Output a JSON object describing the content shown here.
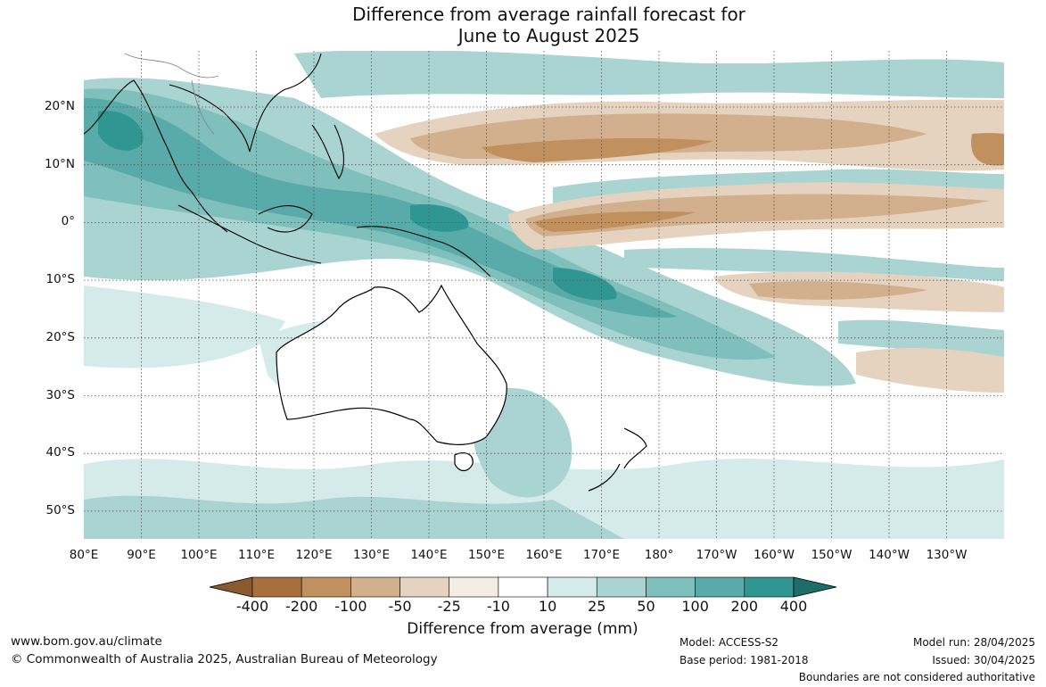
{
  "title": {
    "line1": "Difference from average rainfall forecast for",
    "line2": "June to August 2025"
  },
  "latitude_labels": [
    "20°N",
    "10°N",
    "0°",
    "10°S",
    "20°S",
    "30°S",
    "40°S",
    "50°S"
  ],
  "longitude_labels": [
    "80°E",
    "90°E",
    "100°E",
    "110°E",
    "120°E",
    "130°E",
    "140°E",
    "150°E",
    "160°E",
    "170°E",
    "180°",
    "170°W",
    "160°W",
    "150°W",
    "140°W",
    "130°W"
  ],
  "colorbar": {
    "labels": [
      "-400",
      "-200",
      "-100",
      "-50",
      "-25",
      "-10",
      "10",
      "25",
      "50",
      "100",
      "200",
      "400"
    ],
    "colors": [
      "#8a5a2e",
      "#a86f3c",
      "#c0915f",
      "#d2b08d",
      "#e6d3bf",
      "#f3ede5",
      "#ffffff",
      "#d5ebea",
      "#a9d4d2",
      "#7fbfbc",
      "#58aba8",
      "#2f9691",
      "#1f6d68"
    ],
    "title": "Difference from average (mm)"
  },
  "footer": {
    "url": "www.bom.gov.au/climate",
    "copyright": "© Commonwealth of Australia 2025, Australian Bureau of Meteorology",
    "model": "Model: ACCESS-S2",
    "base_period": "Base period: 1981-2018",
    "model_run": "Model run: 28/04/2025",
    "issued": "Issued: 30/04/2025",
    "disclaimer": "Boundaries are not considered authoritative"
  }
}
